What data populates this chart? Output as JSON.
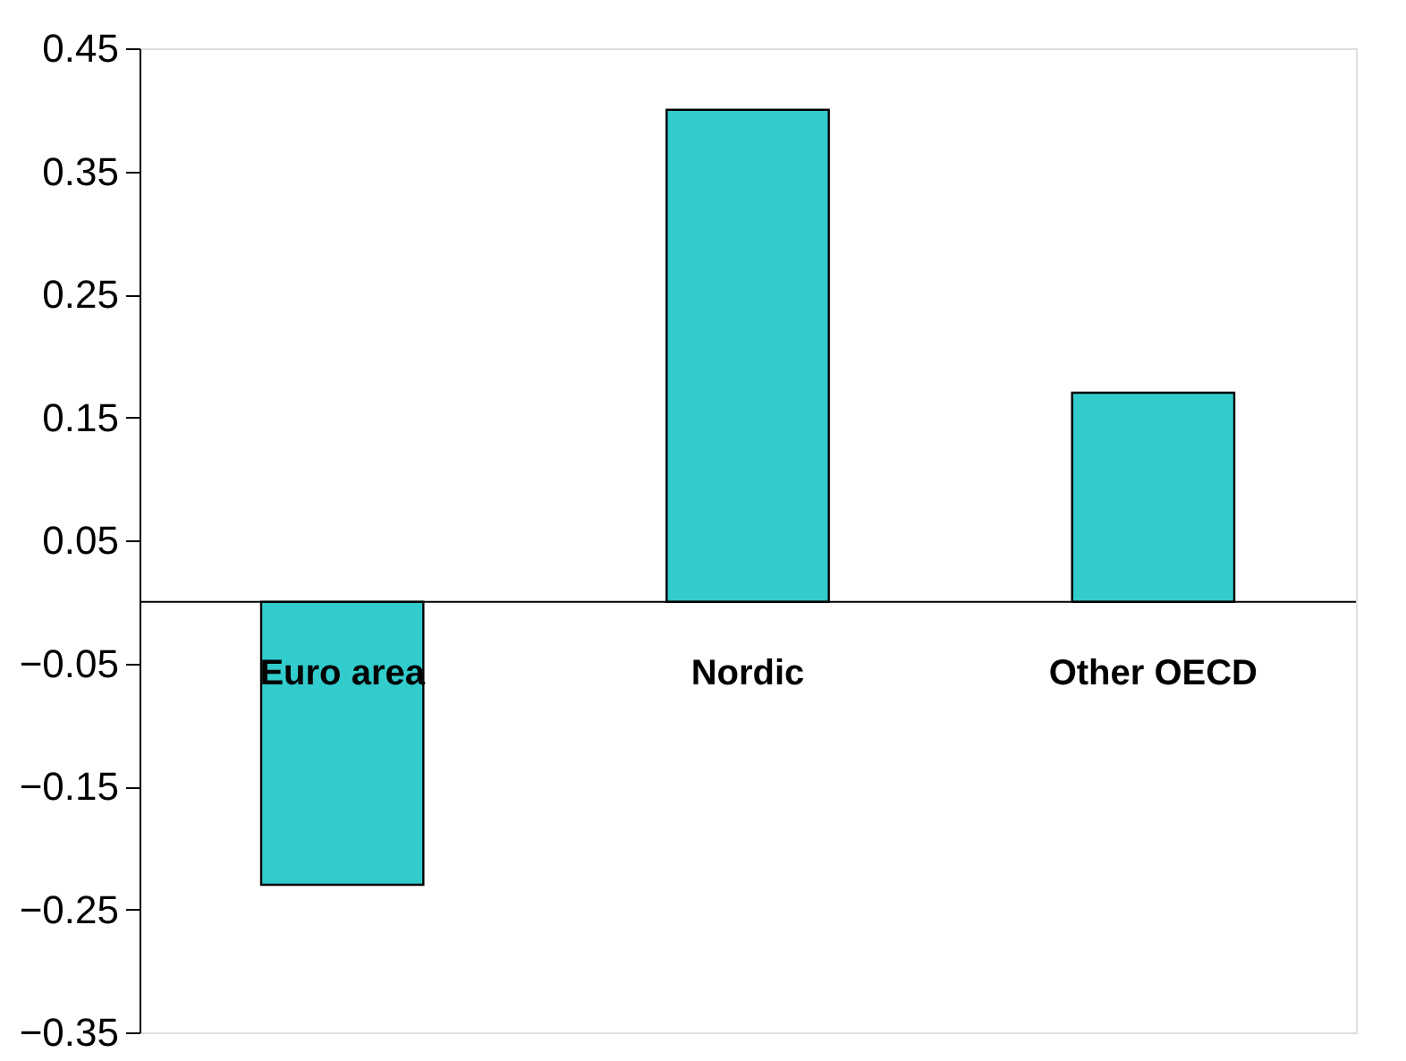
{
  "chart_data": {
    "type": "bar",
    "categories": [
      "Euro area",
      "Nordic",
      "Other OECD"
    ],
    "values": [
      -0.23,
      0.4,
      0.17
    ],
    "color": "#33cccc",
    "ylim": [
      -0.35,
      0.45
    ],
    "yticks": [
      -0.35,
      -0.25,
      -0.15,
      -0.05,
      0.05,
      0.15,
      0.25,
      0.35,
      0.45
    ],
    "grid": false
  }
}
